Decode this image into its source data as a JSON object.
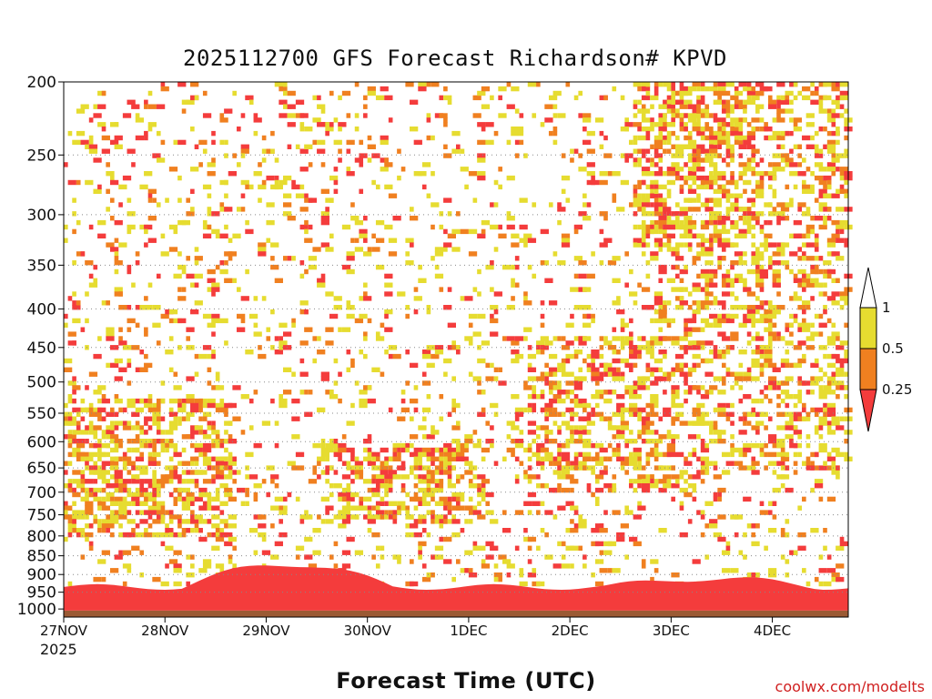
{
  "chart_data": {
    "type": "heatmap",
    "title": "2025112700 GFS Forecast Richardson# KPVD",
    "xlabel": "Forecast Time (UTC)",
    "ylabel": "",
    "x_ticks": [
      "27NOV",
      "28NOV",
      "29NOV",
      "30NOV",
      "1DEC",
      "2DEC",
      "3DEC",
      "4DEC"
    ],
    "x_year": "2025",
    "x_range_hours": [
      0,
      186
    ],
    "y_ticks": [
      200,
      250,
      300,
      350,
      400,
      450,
      500,
      550,
      600,
      650,
      700,
      750,
      800,
      850,
      900,
      950,
      1000
    ],
    "y_range_hPa": [
      200,
      1025
    ],
    "grid": true,
    "colorbar": {
      "labels": [
        "1",
        "0.5",
        "0.25"
      ],
      "thresholds": [
        1,
        0.5,
        0.25
      ],
      "bins": [
        {
          "range": ">1",
          "color": "#ffffff"
        },
        {
          "range": "0.5-1",
          "color": "#e6dc30"
        },
        {
          "range": "0.25-0.5",
          "color": "#f08020"
        },
        {
          "range": "<0.25",
          "color": "#f43c3c"
        }
      ]
    },
    "surface_color": "#9b5a34",
    "low_level_band": {
      "description_levels_hPa": [
        925,
        1000
      ],
      "category": "<0.25"
    }
  },
  "credit": "coolwx.com/modelts"
}
